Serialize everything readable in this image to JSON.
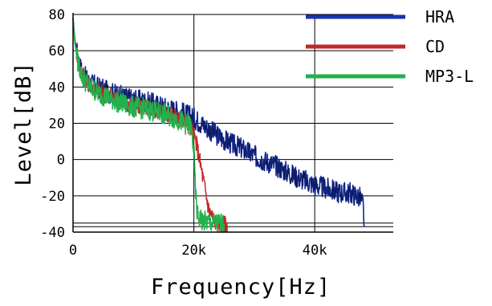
{
  "chart_data": {
    "type": "line",
    "title": "",
    "xlabel": "Frequency[Hz]",
    "ylabel": "Level[dB]",
    "xlim": [
      0,
      53000
    ],
    "ylim": [
      -40,
      80
    ],
    "x_ticks": [
      {
        "value": 0,
        "label": "0"
      },
      {
        "value": 20000,
        "label": "20k"
      },
      {
        "value": 40000,
        "label": "40k"
      }
    ],
    "y_ticks": [
      {
        "value": 80,
        "label": "80"
      },
      {
        "value": 60,
        "label": "60"
      },
      {
        "value": 40,
        "label": "40"
      },
      {
        "value": 20,
        "label": "20"
      },
      {
        "value": 0,
        "label": "0"
      },
      {
        "value": -20,
        "label": "-20"
      },
      {
        "value": -40,
        "label": "-40"
      }
    ],
    "grid": true,
    "legend_position": "top-right",
    "series": [
      {
        "name": "HRA",
        "color": "#1a33b3",
        "x": [
          0,
          300,
          800,
          1500,
          2500,
          4000,
          6000,
          8000,
          10000,
          12000,
          14000,
          16000,
          18000,
          20000,
          22000,
          24000,
          26000,
          28000,
          30000,
          32000,
          34000,
          36000,
          38000,
          40000,
          42000,
          44000,
          46000,
          47500,
          48000,
          48200
        ],
        "y": [
          78,
          66,
          56,
          48,
          43,
          40,
          37,
          35,
          33,
          32,
          30,
          28,
          26,
          23,
          18,
          13,
          9,
          6,
          2,
          -1,
          -4,
          -8,
          -11,
          -14,
          -16,
          -18,
          -18.5,
          -21,
          -25,
          -37
        ]
      },
      {
        "name": "CD",
        "color": "#c0282b",
        "x": [
          0,
          300,
          800,
          1500,
          2500,
          4000,
          6000,
          8000,
          10000,
          12000,
          14000,
          16000,
          18000,
          19500,
          20500,
          21500,
          22500,
          23500,
          24500,
          25500
        ],
        "y": [
          78,
          65,
          55,
          47,
          42,
          38,
          35,
          32,
          30,
          29,
          27,
          25,
          22,
          18,
          8,
          -10,
          -28,
          -34,
          -35.5,
          -36
        ]
      },
      {
        "name": "MP3-L",
        "color": "#22b14c",
        "x": [
          0,
          300,
          800,
          1500,
          2500,
          4000,
          6000,
          8000,
          10000,
          12000,
          14000,
          16000,
          18000,
          19500,
          20000,
          20300,
          20600,
          21500,
          23000,
          25000
        ],
        "y": [
          78,
          64,
          54,
          46,
          41,
          37,
          34,
          31,
          29,
          28,
          26,
          24,
          21,
          18,
          5,
          -20,
          -31,
          -34,
          -35,
          -35.5
        ]
      }
    ]
  }
}
